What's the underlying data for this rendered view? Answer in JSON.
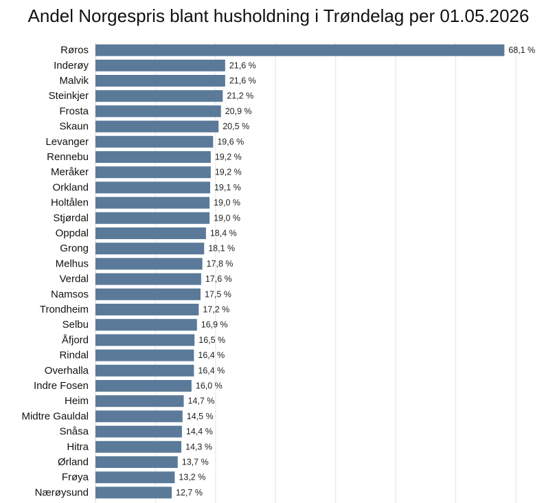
{
  "chart_data": {
    "type": "bar",
    "orientation": "horizontal",
    "title": "Andel Norgespris blant husholdning i Trøndelag per 01.05.2026",
    "value_suffix": " %",
    "decimal_separator": ",",
    "bar_color": "#5b7a99",
    "grid": true,
    "xlim": [
      0,
      70
    ],
    "categories": [
      "Røros",
      "Inderøy",
      "Malvik",
      "Steinkjer",
      "Frosta",
      "Skaun",
      "Levanger",
      "Rennebu",
      "Meråker",
      "Orkland",
      "Holtålen",
      "Stjørdal",
      "Oppdal",
      "Grong",
      "Melhus",
      "Verdal",
      "Namsos",
      "Trondheim",
      "Selbu",
      "Åfjord",
      "Rindal",
      "Overhalla",
      "Indre Fosen",
      "Heim",
      "Midtre Gauldal",
      "Snåsa",
      "Hitra",
      "Ørland",
      "Frøya",
      "Nærøysund"
    ],
    "values": [
      68.1,
      21.6,
      21.6,
      21.2,
      20.9,
      20.5,
      19.6,
      19.2,
      19.2,
      19.1,
      19.0,
      19.0,
      18.4,
      18.1,
      17.8,
      17.6,
      17.5,
      17.2,
      16.9,
      16.5,
      16.4,
      16.4,
      16.0,
      14.7,
      14.5,
      14.4,
      14.3,
      13.7,
      13.2,
      12.7
    ]
  }
}
